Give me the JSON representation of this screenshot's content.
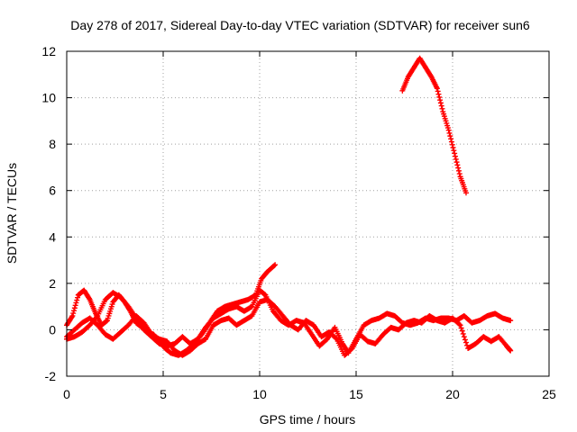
{
  "chart_data": {
    "type": "scatter",
    "title": "Day 278 of 2017, Sidereal Day-to-day VTEC variation (SDTVAR) for receiver sun6",
    "xlabel": "GPS time / hours",
    "ylabel": "SDTVAR / TECUs",
    "xlim": [
      0,
      25
    ],
    "ylim": [
      -2,
      12
    ],
    "xticks": [
      0,
      5,
      10,
      15,
      20,
      25
    ],
    "yticks": [
      -2,
      0,
      2,
      4,
      6,
      8,
      10,
      12
    ],
    "xtick_labels": [
      "0",
      "5",
      "10",
      "15",
      "20",
      "25"
    ],
    "ytick_labels": [
      "-2",
      "0",
      "2",
      "4",
      "6",
      "8",
      "10",
      "12"
    ],
    "grid": true,
    "marker": "+",
    "color": "#ff0000",
    "series": [
      {
        "name": "track-1",
        "points": [
          [
            0.0,
            0.2
          ],
          [
            0.3,
            0.6
          ],
          [
            0.6,
            1.5
          ],
          [
            0.9,
            1.7
          ],
          [
            1.2,
            1.3
          ],
          [
            1.5,
            0.7
          ],
          [
            1.8,
            0.2
          ],
          [
            2.1,
            0.4
          ],
          [
            2.4,
            1.2
          ],
          [
            2.7,
            1.5
          ],
          [
            3.0,
            1.2
          ],
          [
            3.3,
            0.8
          ],
          [
            3.6,
            0.3
          ],
          [
            3.9,
            0.1
          ],
          [
            4.2,
            -0.1
          ],
          [
            4.5,
            -0.2
          ],
          [
            4.8,
            -0.5
          ],
          [
            5.1,
            -0.8
          ],
          [
            5.4,
            -1.0
          ],
          [
            5.8,
            -1.1
          ],
          [
            6.2,
            -0.9
          ],
          [
            6.6,
            -0.6
          ],
          [
            7.0,
            -0.2
          ],
          [
            7.4,
            0.3
          ],
          [
            7.8,
            0.8
          ],
          [
            8.2,
            1.0
          ],
          [
            8.6,
            1.1
          ],
          [
            9.0,
            1.2
          ],
          [
            9.4,
            1.3
          ],
          [
            9.8,
            1.5
          ],
          [
            10.1,
            2.2
          ],
          [
            10.4,
            2.5
          ],
          [
            10.8,
            2.8
          ]
        ]
      },
      {
        "name": "track-2",
        "points": [
          [
            0.0,
            -0.4
          ],
          [
            0.4,
            -0.3
          ],
          [
            0.8,
            -0.1
          ],
          [
            1.2,
            0.2
          ],
          [
            1.6,
            0.6
          ],
          [
            2.0,
            1.3
          ],
          [
            2.4,
            1.6
          ],
          [
            2.8,
            1.4
          ],
          [
            3.2,
            1.0
          ],
          [
            3.6,
            0.5
          ],
          [
            4.0,
            0.0
          ],
          [
            4.4,
            -0.3
          ],
          [
            4.8,
            -0.6
          ],
          [
            5.2,
            -0.7
          ],
          [
            5.6,
            -0.6
          ],
          [
            6.0,
            -0.3
          ],
          [
            6.4,
            -0.6
          ],
          [
            6.8,
            -0.4
          ],
          [
            7.2,
            0.1
          ],
          [
            7.6,
            0.5
          ],
          [
            8.0,
            0.7
          ],
          [
            8.4,
            0.9
          ],
          [
            8.8,
            1.0
          ],
          [
            9.2,
            0.8
          ],
          [
            9.6,
            1.0
          ],
          [
            10.0,
            1.7
          ],
          [
            10.3,
            1.5
          ],
          [
            10.7,
            0.8
          ],
          [
            11.1,
            0.4
          ],
          [
            11.5,
            0.2
          ],
          [
            11.9,
            0.4
          ],
          [
            12.3,
            0.3
          ],
          [
            12.7,
            -0.2
          ],
          [
            13.1,
            -0.7
          ],
          [
            13.5,
            -0.4
          ],
          [
            13.9,
            0.1
          ],
          [
            14.3,
            -0.6
          ],
          [
            14.6,
            -1.0
          ],
          [
            15.0,
            -0.4
          ],
          [
            15.4,
            0.2
          ],
          [
            15.8,
            0.4
          ],
          [
            16.2,
            0.5
          ],
          [
            16.6,
            0.7
          ],
          [
            17.0,
            0.6
          ],
          [
            17.4,
            0.3
          ],
          [
            17.8,
            0.2
          ],
          [
            18.2,
            0.3
          ],
          [
            18.6,
            0.5
          ],
          [
            19.0,
            0.4
          ],
          [
            19.4,
            0.5
          ],
          [
            19.8,
            0.5
          ],
          [
            20.2,
            0.4
          ],
          [
            20.6,
            0.6
          ],
          [
            21.0,
            0.3
          ],
          [
            21.4,
            0.4
          ],
          [
            21.8,
            0.6
          ],
          [
            22.2,
            0.7
          ],
          [
            22.6,
            0.5
          ],
          [
            23.0,
            0.4
          ]
        ]
      },
      {
        "name": "track-3",
        "points": [
          [
            0.0,
            -0.3
          ],
          [
            0.4,
            0.0
          ],
          [
            0.8,
            0.3
          ],
          [
            1.2,
            0.5
          ],
          [
            1.6,
            0.2
          ],
          [
            2.0,
            -0.2
          ],
          [
            2.4,
            -0.4
          ],
          [
            2.8,
            -0.1
          ],
          [
            3.2,
            0.2
          ],
          [
            3.6,
            0.6
          ],
          [
            4.0,
            0.3
          ],
          [
            4.4,
            -0.2
          ],
          [
            4.8,
            -0.4
          ],
          [
            5.2,
            -0.5
          ],
          [
            5.6,
            -0.9
          ],
          [
            6.0,
            -1.1
          ],
          [
            6.4,
            -0.9
          ],
          [
            6.8,
            -0.6
          ],
          [
            7.2,
            -0.4
          ],
          [
            7.6,
            0.2
          ],
          [
            8.0,
            0.4
          ],
          [
            8.4,
            0.5
          ],
          [
            8.8,
            0.2
          ],
          [
            9.2,
            0.4
          ],
          [
            9.6,
            0.6
          ],
          [
            10.0,
            1.2
          ],
          [
            10.4,
            1.3
          ],
          [
            10.8,
            1.0
          ],
          [
            11.2,
            0.6
          ],
          [
            11.6,
            0.2
          ],
          [
            12.0,
            0.0
          ],
          [
            12.4,
            0.4
          ],
          [
            12.8,
            0.2
          ],
          [
            13.2,
            -0.3
          ],
          [
            13.6,
            -0.1
          ],
          [
            14.0,
            -0.4
          ],
          [
            14.4,
            -1.1
          ],
          [
            14.8,
            -0.8
          ],
          [
            15.2,
            -0.2
          ],
          [
            15.6,
            -0.5
          ],
          [
            16.0,
            -0.6
          ],
          [
            16.4,
            -0.2
          ],
          [
            16.8,
            0.1
          ],
          [
            17.2,
            0.0
          ],
          [
            17.6,
            0.3
          ],
          [
            18.0,
            0.4
          ],
          [
            18.4,
            0.3
          ],
          [
            18.8,
            0.6
          ],
          [
            19.2,
            0.4
          ],
          [
            19.6,
            0.3
          ],
          [
            20.0,
            0.5
          ],
          [
            20.4,
            0.2
          ],
          [
            20.8,
            -0.8
          ],
          [
            21.2,
            -0.6
          ],
          [
            21.6,
            -0.3
          ],
          [
            22.0,
            -0.5
          ],
          [
            22.4,
            -0.3
          ],
          [
            22.8,
            -0.7
          ],
          [
            23.0,
            -0.9
          ]
        ]
      },
      {
        "name": "track-4",
        "points": [
          [
            17.4,
            10.3
          ],
          [
            17.7,
            10.9
          ],
          [
            18.0,
            11.3
          ],
          [
            18.3,
            11.7
          ],
          [
            18.6,
            11.3
          ],
          [
            18.9,
            10.9
          ],
          [
            19.2,
            10.4
          ],
          [
            19.5,
            9.4
          ],
          [
            19.8,
            8.6
          ],
          [
            20.1,
            7.6
          ],
          [
            20.4,
            6.6
          ],
          [
            20.7,
            5.9
          ]
        ]
      }
    ]
  }
}
